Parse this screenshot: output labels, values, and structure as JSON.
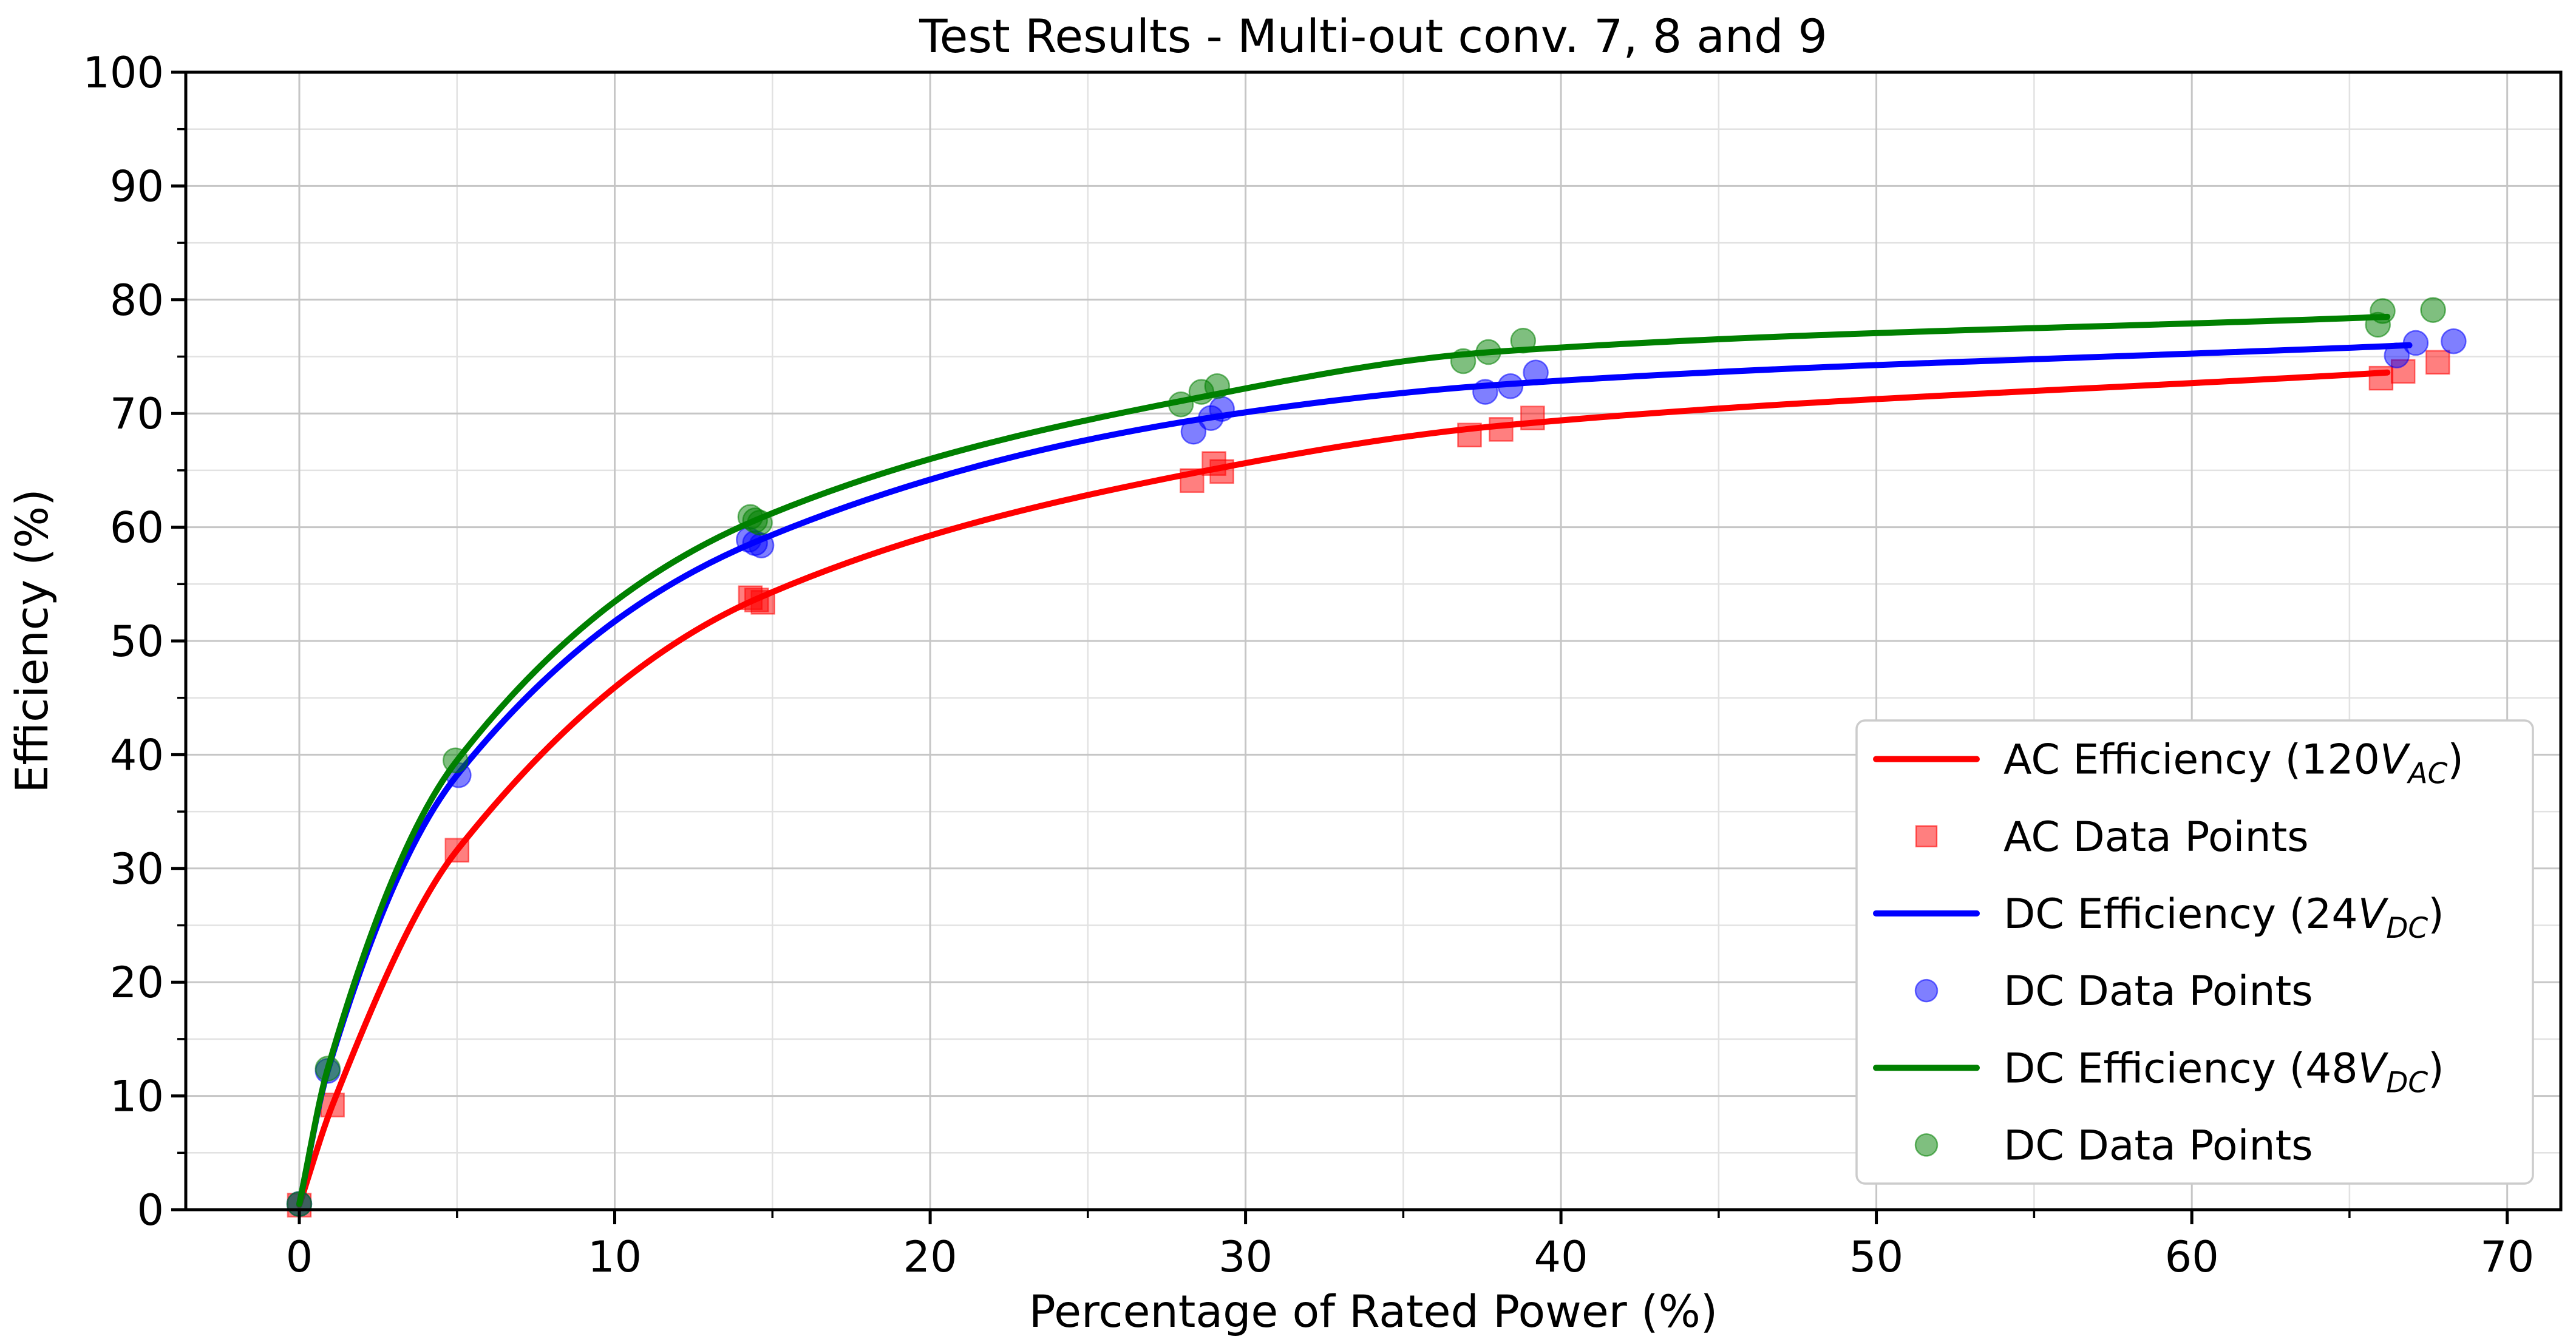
{
  "chart_data": {
    "type": "line+scatter",
    "title": "Test Results - Multi-out conv. 7, 8 and 9",
    "xlabel": "Percentage of Rated Power (%)",
    "ylabel": "Efficiency (%)",
    "xlim": [
      -3.6,
      71.7
    ],
    "ylim": [
      0,
      100
    ],
    "x_major_ticks": [
      0,
      10,
      20,
      30,
      40,
      50,
      60,
      70
    ],
    "x_minor_ticks": [
      5,
      15,
      25,
      35,
      45,
      55,
      65
    ],
    "y_major_ticks": [
      0,
      10,
      20,
      30,
      40,
      50,
      60,
      70,
      80,
      90,
      100
    ],
    "y_minor_ticks": [
      5,
      15,
      25,
      35,
      45,
      55,
      65,
      75,
      85,
      95
    ],
    "grid": {
      "major_color": "#c6c6c6",
      "minor_color": "#e2e2e2",
      "visible": true
    },
    "legend_position": "lower right",
    "series": [
      {
        "id": "ac-efficiency-line",
        "name": "AC Efficiency (120V_AC)",
        "kind": "line",
        "color": "#ff0000",
        "points": [
          [
            0,
            0.4
          ],
          [
            1.05,
            9.2
          ],
          [
            5,
            31.6
          ],
          [
            14.5,
            53.7
          ],
          [
            28.8,
            65.0
          ],
          [
            38.0,
            68.9
          ],
          [
            66.2,
            73.6
          ]
        ]
      },
      {
        "id": "ac-data-points",
        "name": "AC Data Points",
        "kind": "scatter",
        "marker": "square",
        "color": "#ff0000",
        "alpha": 0.5,
        "points": [
          [
            0,
            0.4
          ],
          [
            1.05,
            9.2
          ],
          [
            5,
            31.6
          ],
          [
            14.3,
            53.8
          ],
          [
            14.5,
            53.6
          ],
          [
            14.7,
            53.4
          ],
          [
            28.3,
            64.1
          ],
          [
            29.0,
            65.6
          ],
          [
            29.25,
            64.9
          ],
          [
            37.1,
            68.1
          ],
          [
            38.1,
            68.6
          ],
          [
            39.1,
            69.6
          ],
          [
            66.0,
            73.1
          ],
          [
            66.7,
            73.7
          ],
          [
            67.8,
            74.5
          ]
        ]
      },
      {
        "id": "dc24-efficiency-line",
        "name": "DC Efficiency (24V_DC)",
        "kind": "line",
        "color": "#0000ff",
        "points": [
          [
            0,
            0.5
          ],
          [
            0.9,
            12.2
          ],
          [
            5,
            38.2
          ],
          [
            14.45,
            58.7
          ],
          [
            28.8,
            69.6
          ],
          [
            38.4,
            72.6
          ],
          [
            66.9,
            76.0
          ]
        ]
      },
      {
        "id": "dc24-data-points",
        "name": "DC Data Points",
        "kind": "scatter",
        "marker": "circle",
        "color": "#0000ff",
        "alpha": 0.5,
        "points": [
          [
            0,
            0.5
          ],
          [
            0.9,
            12.2
          ],
          [
            5.05,
            38.2
          ],
          [
            14.25,
            58.9
          ],
          [
            14.45,
            58.6
          ],
          [
            14.65,
            58.4
          ],
          [
            28.35,
            68.4
          ],
          [
            28.9,
            69.6
          ],
          [
            29.25,
            70.4
          ],
          [
            37.6,
            71.9
          ],
          [
            38.4,
            72.4
          ],
          [
            39.2,
            73.6
          ],
          [
            66.5,
            75.1
          ],
          [
            67.1,
            76.2
          ],
          [
            68.3,
            76.35
          ]
        ]
      },
      {
        "id": "dc48-efficiency-line",
        "name": "DC Efficiency (48V_DC)",
        "kind": "line",
        "color": "#008000",
        "points": [
          [
            0,
            0.5
          ],
          [
            0.9,
            12.4
          ],
          [
            5,
            39.5
          ],
          [
            14.45,
            60.6
          ],
          [
            28.7,
            71.5
          ],
          [
            37.8,
            75.4
          ],
          [
            66.2,
            78.5
          ]
        ]
      },
      {
        "id": "dc48-data-points",
        "name": "DC Data Points",
        "kind": "scatter",
        "marker": "circle",
        "color": "#008000",
        "alpha": 0.5,
        "points": [
          [
            0,
            0.5
          ],
          [
            0.9,
            12.4
          ],
          [
            4.95,
            39.5
          ],
          [
            14.3,
            60.9
          ],
          [
            14.45,
            60.6
          ],
          [
            14.6,
            60.4
          ],
          [
            27.95,
            70.8
          ],
          [
            28.6,
            71.9
          ],
          [
            29.1,
            72.4
          ],
          [
            36.9,
            74.6
          ],
          [
            37.7,
            75.4
          ],
          [
            38.8,
            76.4
          ],
          [
            65.9,
            77.8
          ],
          [
            66.05,
            79.0
          ],
          [
            67.65,
            79.1
          ]
        ]
      }
    ],
    "legend": {
      "entries": [
        {
          "label": "AC Efficiency (120",
          "var": "V",
          "sub": "AC",
          "close": ")",
          "sample": "line",
          "color": "#ff0000"
        },
        {
          "label": "AC Data Points",
          "sample": "square",
          "color": "#ff0000",
          "alpha": 0.5
        },
        {
          "label": "DC Efficiency (24",
          "var": "V",
          "sub": "DC",
          "close": ")",
          "sample": "line",
          "color": "#0000ff"
        },
        {
          "label": "DC Data Points",
          "sample": "circle",
          "color": "#0000ff",
          "alpha": 0.5
        },
        {
          "label": "DC Efficiency (48",
          "var": "V",
          "sub": "DC",
          "close": ")",
          "sample": "line",
          "color": "#008000"
        },
        {
          "label": "DC Data Points",
          "sample": "circle",
          "color": "#008000",
          "alpha": 0.5
        }
      ]
    }
  }
}
